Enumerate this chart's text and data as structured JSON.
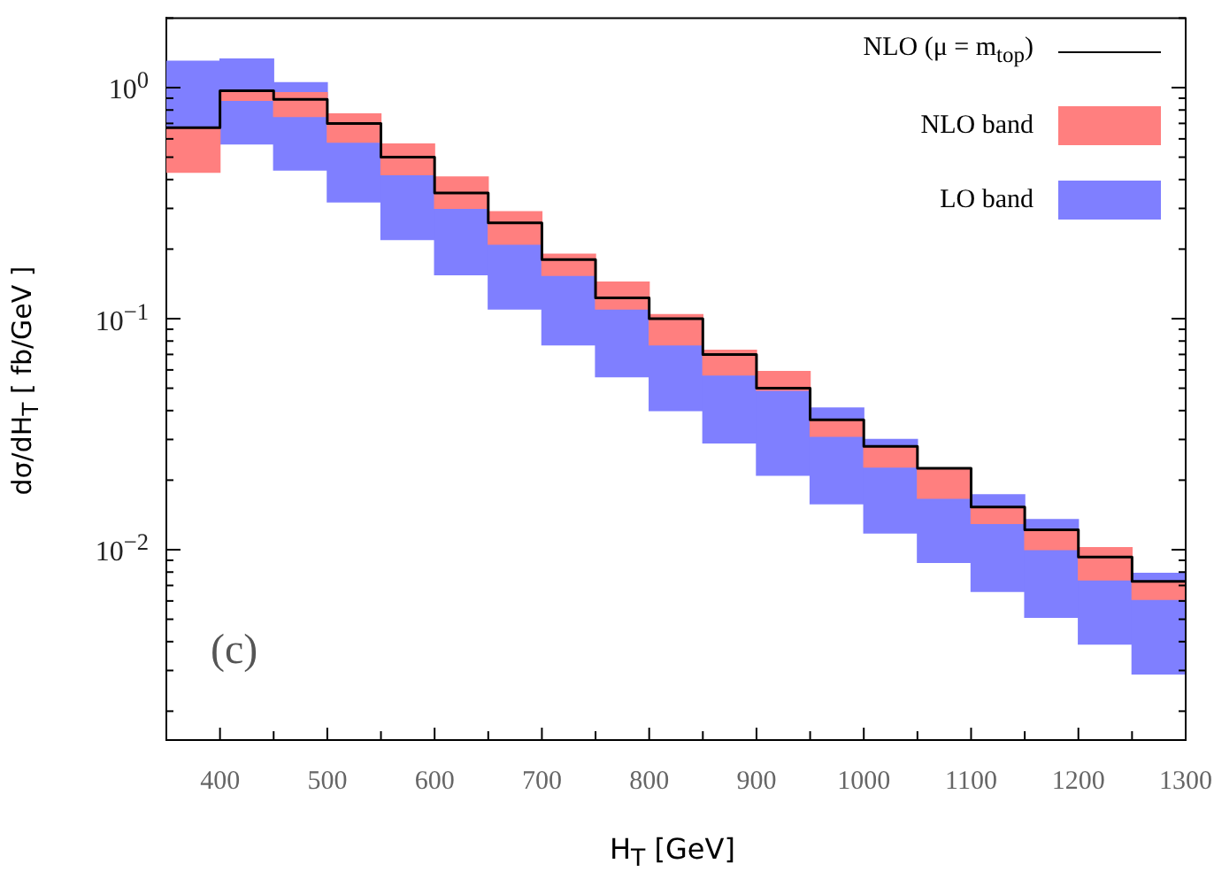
{
  "chart_data": {
    "type": "bar",
    "xlabel": "H$_{T}$ [GeV]",
    "ylabel": "dσ/dH$_{T}$ [ fb/GeV ]",
    "x": [
      375,
      425,
      475,
      525,
      575,
      625,
      675,
      725,
      775,
      825,
      875,
      925,
      975,
      1025,
      1075,
      1125,
      1175,
      1225,
      1275
    ],
    "series": [
      {
        "name": "NLO (μ = m$_{top}$)",
        "type": "step",
        "color": "#000000",
        "x": [
          350,
          400,
          450,
          500,
          550,
          600,
          650,
          700,
          750,
          800,
          850,
          900,
          950,
          1000,
          1050,
          1100,
          1150,
          1200,
          1250,
          1300
        ],
        "values": [
          0.67,
          0.97,
          0.89,
          0.7,
          0.5,
          0.35,
          0.26,
          0.18,
          0.123,
          0.1,
          0.07,
          0.05,
          0.0365,
          0.028,
          0.0225,
          0.0153,
          0.0122,
          0.0093,
          0.0073,
          0.0073
        ]
      },
      {
        "name": "NLO band",
        "type": "bar",
        "color": "#ff7f7f",
        "base": [
          0.43,
          0.88,
          0.75,
          0.58,
          0.42,
          0.3,
          0.21,
          0.154,
          0.11,
          0.077,
          0.057,
          0.049,
          0.031,
          0.0228,
          0.0167,
          0.013,
          0.01,
          0.0074,
          0.0061
        ],
        "values": [
          0.24,
          0.09,
          0.2,
          0.19,
          0.15,
          0.11,
          0.08,
          0.036,
          0.034,
          0.027,
          0.016,
          0.01,
          0.0055,
          0.0052,
          0.0058,
          0.0023,
          0.0022,
          0.0028,
          0.0012
        ]
      },
      {
        "name": "LO band",
        "type": "bar",
        "color": "#7f7fff",
        "base": [
          0.67,
          0.57,
          0.44,
          0.32,
          0.22,
          0.155,
          0.11,
          0.077,
          0.056,
          0.04,
          0.029,
          0.021,
          0.0158,
          0.0118,
          0.0088,
          0.0066,
          0.0051,
          0.0039,
          0.0029
        ],
        "values": [
          0.63,
          0.76,
          0.61,
          0.26,
          0.2,
          0.145,
          0.1,
          0.077,
          0.054,
          0.037,
          0.028,
          0.028,
          0.0252,
          0.0182,
          0.0079,
          0.0107,
          0.0084,
          0.0035,
          0.005
        ]
      }
    ],
    "xlim": [
      350,
      1300
    ],
    "xticks": [
      400,
      {
        "value": 450,
        "label": null
      },
      500,
      {
        "value": 550,
        "label": null
      },
      600,
      {
        "value": 650,
        "label": null
      },
      700,
      {
        "value": 750,
        "label": null
      },
      800,
      {
        "value": 850,
        "label": null
      },
      900,
      {
        "value": 950,
        "label": null
      },
      1000,
      {
        "value": 1050,
        "label": null
      },
      1100,
      {
        "value": 1150,
        "label": null
      },
      1200,
      {
        "value": 1250,
        "label": null
      },
      1300
    ],
    "log": "y",
    "ylim": [
      0.0015,
      2
    ],
    "yticks": [
      {
        "value": 0.002,
        "label": null
      },
      {
        "value": 0.003,
        "label": null
      },
      {
        "value": 0.004,
        "label": null
      },
      {
        "value": 0.005,
        "label": null
      },
      {
        "value": 0.006,
        "label": null
      },
      {
        "value": 0.007,
        "label": null
      },
      {
        "value": 0.008,
        "label": null
      },
      {
        "value": 0.009,
        "label": null
      },
      {
        "value": 0.01,
        "label": "10$^{−2}$"
      },
      {
        "value": 0.02,
        "label": null
      },
      {
        "value": 0.03,
        "label": null
      },
      {
        "value": 0.04,
        "label": null
      },
      {
        "value": 0.05,
        "label": null
      },
      {
        "value": 0.06,
        "label": null
      },
      {
        "value": 0.07,
        "label": null
      },
      {
        "value": 0.08,
        "label": null
      },
      {
        "value": 0.09,
        "label": null
      },
      {
        "value": 0.1,
        "label": "10$^{−1}$"
      },
      {
        "value": 0.2,
        "label": null
      },
      {
        "value": 0.3,
        "label": null
      },
      {
        "value": 0.4,
        "label": null
      },
      {
        "value": 0.5,
        "label": null
      },
      {
        "value": 0.6,
        "label": null
      },
      {
        "value": 0.7,
        "label": null
      },
      {
        "value": 0.8,
        "label": null
      },
      {
        "value": 0.9,
        "label": null
      },
      {
        "value": 1,
        "label": "10$^{0}$"
      },
      {
        "value": 2,
        "label": null
      }
    ],
    "legend": "top right",
    "annotations": [
      "(c)"
    ]
  }
}
